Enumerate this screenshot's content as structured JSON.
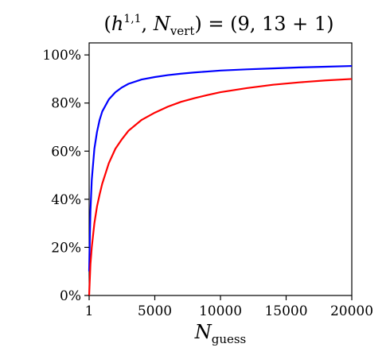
{
  "chart_data": {
    "type": "line",
    "title": "(h^{1,1}, N_vert) = (9, 13 + 1)",
    "title_parts": {
      "open": "(",
      "h": "h",
      "h_sup": "1,1",
      "comma": ", ",
      "n": "N",
      "n_sub": "vert",
      "rest": ") = (9, 13 + 1)"
    },
    "xlabel": "N_guess",
    "xlabel_parts": {
      "main": "N",
      "sub": "guess"
    },
    "ylabel": "",
    "xlim": [
      1,
      20000
    ],
    "ylim": [
      0,
      105
    ],
    "xticks": [
      1,
      5000,
      10000,
      15000,
      20000
    ],
    "xtick_labels": [
      "1",
      "5000",
      "10000",
      "15000",
      "20000"
    ],
    "yticks": [
      0,
      20,
      40,
      60,
      80,
      100
    ],
    "ytick_labels": [
      "0%",
      "20%",
      "40%",
      "60%",
      "80%",
      "100%"
    ],
    "grid": false,
    "series": [
      {
        "color": "#0000ff",
        "x": [
          1,
          100,
          200,
          400,
          600,
          800,
          1000,
          1500,
          2000,
          2500,
          3000,
          4000,
          5000,
          6000,
          7000,
          8000,
          9000,
          10000,
          12000,
          14000,
          16000,
          18000,
          20000
        ],
        "y": [
          10,
          35,
          48,
          61,
          68,
          73,
          76.5,
          81.5,
          84.5,
          86.5,
          88,
          89.8,
          90.8,
          91.6,
          92.2,
          92.7,
          93.1,
          93.5,
          94.0,
          94.4,
          94.8,
          95.1,
          95.4
        ]
      },
      {
        "color": "#ff0000",
        "x": [
          1,
          100,
          200,
          400,
          600,
          800,
          1000,
          1500,
          2000,
          2500,
          3000,
          4000,
          5000,
          6000,
          7000,
          8000,
          9000,
          10000,
          12000,
          14000,
          16000,
          18000,
          20000
        ],
        "y": [
          0,
          13,
          20,
          30,
          37,
          42,
          46.5,
          55,
          61,
          65,
          68.5,
          73,
          76,
          78.5,
          80.5,
          82,
          83.3,
          84.5,
          86.2,
          87.6,
          88.6,
          89.4,
          90
        ]
      }
    ],
    "line_colors": [
      "#0000ff",
      "#ff0000"
    ]
  }
}
